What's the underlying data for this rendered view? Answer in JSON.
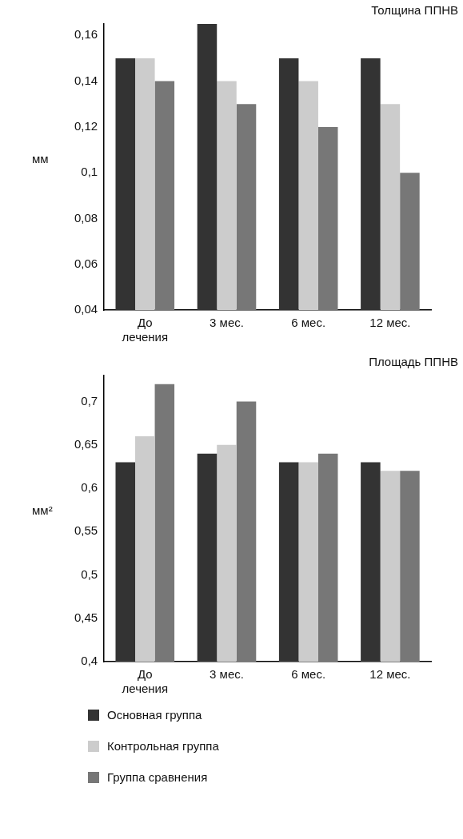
{
  "chart_data": [
    {
      "type": "bar",
      "title": "Толщина ППНВ",
      "ylabel": "мм",
      "categories": [
        "До лечения",
        "3 мес.",
        "6 мес.",
        "12 мес."
      ],
      "series": [
        {
          "color": "#333333",
          "values": [
            0.15,
            0.165,
            0.15,
            0.15
          ]
        },
        {
          "color": "#cccccc",
          "values": [
            0.15,
            0.14,
            0.14,
            0.13
          ]
        },
        {
          "color": "#777777",
          "values": [
            0.14,
            0.13,
            0.12,
            0.1
          ]
        }
      ],
      "ylim": [
        0.04,
        0.165
      ],
      "yticks": [
        {
          "value": 0.04,
          "label": "0,04"
        },
        {
          "value": 0.06,
          "label": "0,06"
        },
        {
          "value": 0.08,
          "label": "0,08"
        },
        {
          "value": 0.1,
          "label": "0,1"
        },
        {
          "value": 0.12,
          "label": "0,12"
        },
        {
          "value": 0.14,
          "label": "0,14"
        },
        {
          "value": 0.16,
          "label": "0,16"
        }
      ],
      "grid": false,
      "legend": false
    },
    {
      "type": "bar",
      "title": "Площадь ППНВ",
      "ylabel": "мм²",
      "categories": [
        "До лечения",
        "3 мес.",
        "6 мес.",
        "12 мес."
      ],
      "series": [
        {
          "name": "Основная группа",
          "color": "#333333",
          "values": [
            0.63,
            0.64,
            0.63,
            0.63
          ]
        },
        {
          "name": "Контрольная группа",
          "color": "#cccccc",
          "values": [
            0.66,
            0.65,
            0.63,
            0.62
          ]
        },
        {
          "name": "Группа сравнения",
          "color": "#777777",
          "values": [
            0.72,
            0.7,
            0.64,
            0.62
          ]
        }
      ],
      "ylim": [
        0.4,
        0.73
      ],
      "yticks": [
        {
          "value": 0.4,
          "label": "0,4"
        },
        {
          "value": 0.45,
          "label": "0,45"
        },
        {
          "value": 0.5,
          "label": "0,5"
        },
        {
          "value": 0.55,
          "label": "0,55"
        },
        {
          "value": 0.6,
          "label": "0,6"
        },
        {
          "value": 0.65,
          "label": "0,65"
        },
        {
          "value": 0.7,
          "label": "0,7"
        }
      ],
      "grid": false,
      "legend": "bottom left"
    }
  ]
}
